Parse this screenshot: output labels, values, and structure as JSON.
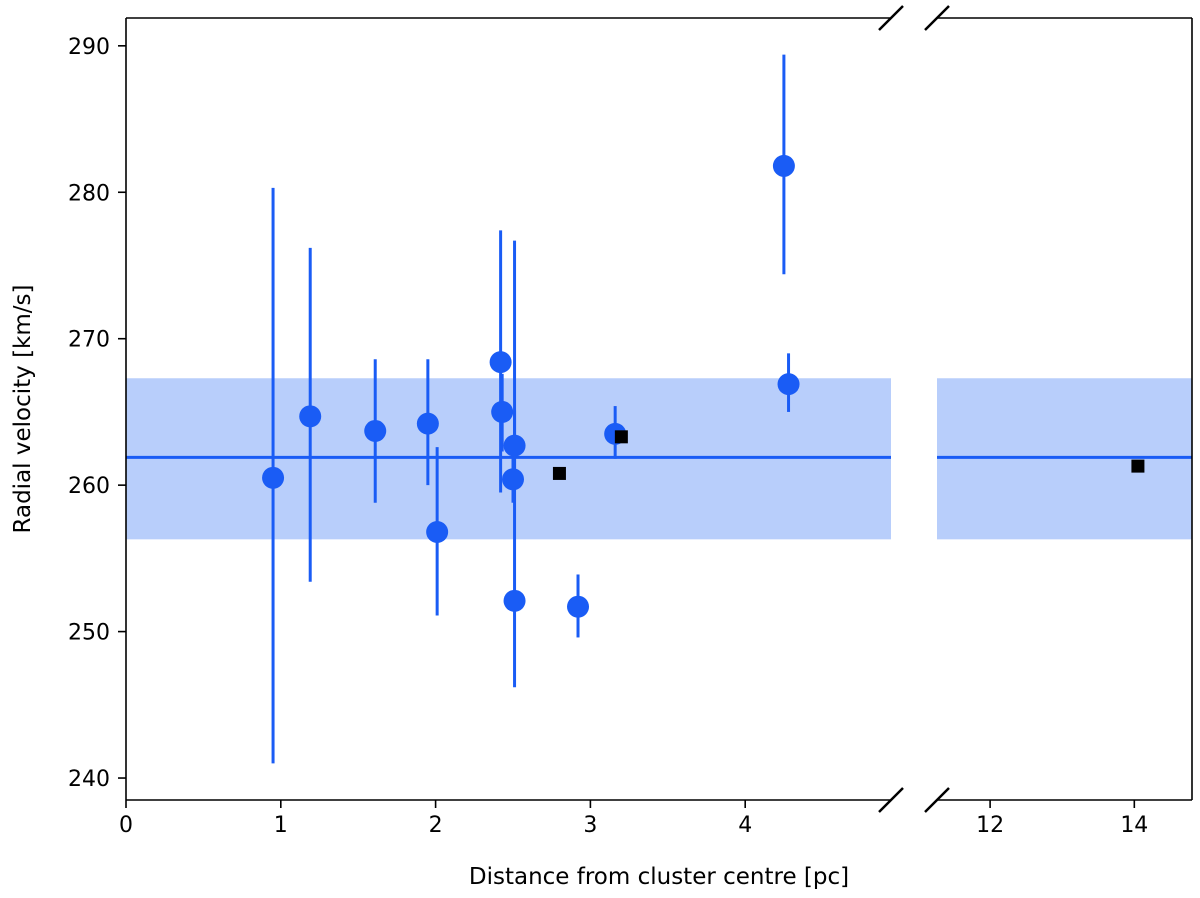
{
  "chart_data": {
    "type": "scatter",
    "title": "",
    "xlabel": "Distance from cluster centre [pc]",
    "ylabel": "Radial velocity [km/s]",
    "broken_x_axis": true,
    "x_segments": [
      {
        "xlim": [
          0,
          5.0
        ],
        "xticks": [
          0,
          1,
          2,
          3,
          4
        ]
      },
      {
        "xlim": [
          11.0,
          14.8
        ],
        "xticks": [
          12,
          14
        ]
      }
    ],
    "ylim": [
      238.5,
      291.9
    ],
    "yticks": [
      240,
      250,
      260,
      270,
      280,
      290
    ],
    "grid": false,
    "legend": "none",
    "colors": {
      "rv_points": "#1a5cf5",
      "mean_line": "#1a5cf5",
      "band": "#b8cefb",
      "other_points": "#000000"
    },
    "mean_velocity": 261.9,
    "band_range": [
      256.3,
      267.3
    ],
    "series": [
      {
        "marker": "circle",
        "points": [
          {
            "x": 0.95,
            "y": 260.5,
            "err_low": 241.0,
            "err_high": 280.3
          },
          {
            "x": 1.19,
            "y": 264.7,
            "err_low": 253.4,
            "err_high": 276.2
          },
          {
            "x": 1.61,
            "y": 263.7,
            "err_low": 258.8,
            "err_high": 268.6
          },
          {
            "x": 1.95,
            "y": 264.2,
            "err_low": 260.0,
            "err_high": 268.6
          },
          {
            "x": 2.01,
            "y": 256.8,
            "err_low": 251.1,
            "err_high": 262.6
          },
          {
            "x": 2.42,
            "y": 268.4,
            "err_low": 259.5,
            "err_high": 277.4
          },
          {
            "x": 2.43,
            "y": 265.0,
            "err_low": 262.3,
            "err_high": 267.6
          },
          {
            "x": 2.51,
            "y": 262.7,
            "err_low": 260.4,
            "err_high": 265.1
          },
          {
            "x": 2.5,
            "y": 260.4,
            "err_low": 258.8,
            "err_high": 262.0
          },
          {
            "x": 2.51,
            "y": 252.1,
            "err_low": 246.2,
            "err_high": 276.7
          },
          {
            "x": 2.92,
            "y": 251.7,
            "err_low": 249.6,
            "err_high": 253.9
          },
          {
            "x": 3.16,
            "y": 263.5,
            "err_low": 261.8,
            "err_high": 265.4
          },
          {
            "x": 4.25,
            "y": 281.8,
            "err_low": 274.4,
            "err_high": 289.4
          },
          {
            "x": 4.28,
            "y": 266.9,
            "err_low": 265.0,
            "err_high": 269.0
          }
        ]
      },
      {
        "marker": "square",
        "points": [
          {
            "x": 2.8,
            "y": 260.8
          },
          {
            "x": 3.2,
            "y": 263.3
          },
          {
            "x": 14.05,
            "y": 261.3
          }
        ]
      }
    ]
  }
}
